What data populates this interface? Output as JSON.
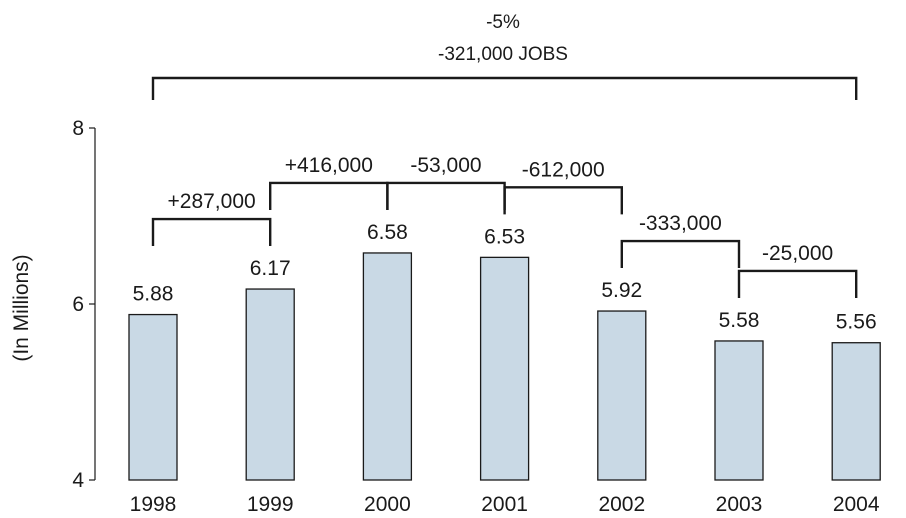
{
  "chart_data": {
    "type": "bar",
    "categories": [
      "1998",
      "1999",
      "2000",
      "2001",
      "2002",
      "2003",
      "2004"
    ],
    "values": [
      5.88,
      6.17,
      6.58,
      6.53,
      5.92,
      5.58,
      5.56
    ],
    "value_labels": [
      "5.88",
      "6.17",
      "6.58",
      "6.53",
      "5.92",
      "5.58",
      "5.56"
    ],
    "ylabel": "(In Millions)",
    "ylim": [
      4,
      8
    ],
    "yticks": [
      "4",
      "6",
      "8"
    ],
    "bar_color": "#c9d9e5",
    "grid": false,
    "changes": [
      {
        "from": "1998",
        "to": "1999",
        "label": "+287,000"
      },
      {
        "from": "1999",
        "to": "2000",
        "label": "+416,000"
      },
      {
        "from": "2000",
        "to": "2001",
        "label": "-53,000"
      },
      {
        "from": "2001",
        "to": "2002",
        "label": "-612,000"
      },
      {
        "from": "2002",
        "to": "2003",
        "label": "-333,000"
      },
      {
        "from": "2003",
        "to": "2004",
        "label": "-25,000"
      }
    ],
    "total_change": {
      "from": "1998",
      "to": "2004",
      "line1": "-5%",
      "line2": "-321,000 JOBS"
    }
  }
}
